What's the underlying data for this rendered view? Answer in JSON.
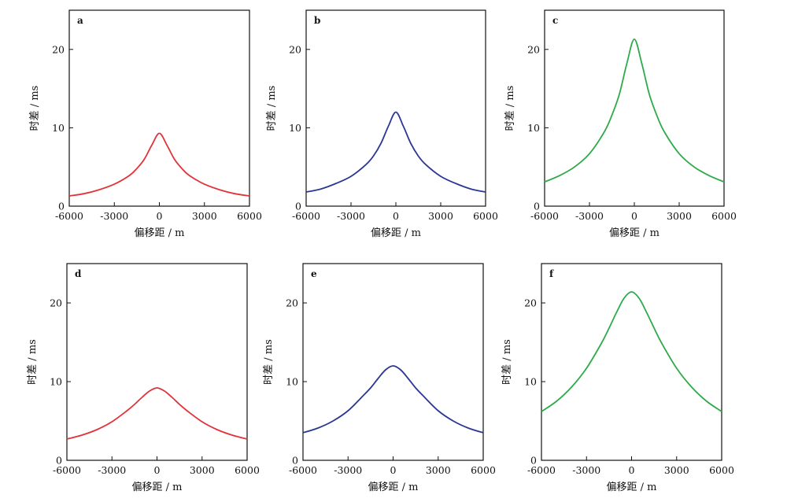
{
  "chart_data": [
    {
      "panel_label": "a",
      "type": "line",
      "color": "#e0333a",
      "xlabel": "偏移距 / m",
      "ylabel": "时差 / ms",
      "xlim": [
        -6000,
        6000
      ],
      "ylim": [
        0,
        25
      ],
      "xticks": [
        "-6000",
        "-3000",
        "0",
        "3000",
        "6000"
      ],
      "yticks": [
        "0",
        "10",
        "20"
      ],
      "series": [
        {
          "x": [
            -6000,
            -5000,
            -4000,
            -3000,
            -2000,
            -1500,
            -1000,
            -500,
            0,
            500,
            1000,
            1500,
            2000,
            3000,
            4000,
            5000,
            6000
          ],
          "y": [
            1.3,
            1.6,
            2.1,
            2.8,
            3.9,
            4.8,
            6.0,
            7.8,
            9.3,
            7.8,
            6.0,
            4.8,
            3.9,
            2.8,
            2.1,
            1.6,
            1.3
          ]
        }
      ]
    },
    {
      "panel_label": "b",
      "type": "line",
      "color": "#2b3794",
      "xlabel": "偏移距 / m",
      "ylabel": "时差 / ms",
      "xlim": [
        -6000,
        6000
      ],
      "ylim": [
        0,
        25
      ],
      "xticks": [
        "-6000",
        "-3000",
        "0",
        "3000",
        "6000"
      ],
      "yticks": [
        "0",
        "10",
        "20"
      ],
      "series": [
        {
          "x": [
            -6000,
            -5000,
            -4000,
            -3000,
            -2000,
            -1500,
            -1000,
            -500,
            0,
            500,
            1000,
            1500,
            2000,
            3000,
            4000,
            5000,
            6000
          ],
          "y": [
            1.8,
            2.2,
            2.9,
            3.8,
            5.3,
            6.4,
            8.0,
            10.2,
            12.0,
            10.2,
            8.0,
            6.4,
            5.3,
            3.8,
            2.9,
            2.2,
            1.8
          ]
        }
      ]
    },
    {
      "panel_label": "c",
      "type": "line",
      "color": "#2eaa4a",
      "xlabel": "偏移距 / m",
      "ylabel": "时差 / ms",
      "xlim": [
        -6000,
        6000
      ],
      "ylim": [
        0,
        25
      ],
      "xticks": [
        "-6000",
        "-3000",
        "0",
        "3000",
        "6000"
      ],
      "yticks": [
        "0",
        "10",
        "20"
      ],
      "series": [
        {
          "x": [
            -6000,
            -5000,
            -4000,
            -3000,
            -2000,
            -1500,
            -1000,
            -500,
            0,
            500,
            1000,
            1500,
            2000,
            3000,
            4000,
            5000,
            6000
          ],
          "y": [
            3.1,
            3.9,
            5.0,
            6.7,
            9.5,
            11.6,
            14.3,
            18.2,
            21.3,
            18.2,
            14.3,
            11.6,
            9.5,
            6.7,
            5.0,
            3.9,
            3.1
          ]
        }
      ]
    },
    {
      "panel_label": "d",
      "type": "line",
      "color": "#e0333a",
      "xlabel": "偏移距 / m",
      "ylabel": "时差 / ms",
      "xlim": [
        -6000,
        6000
      ],
      "ylim": [
        0,
        25
      ],
      "xticks": [
        "-6000",
        "-3000",
        "0",
        "3000",
        "6000"
      ],
      "yticks": [
        "0",
        "10",
        "20"
      ],
      "series": [
        {
          "x": [
            -6000,
            -5000,
            -4000,
            -3000,
            -2000,
            -1500,
            -1000,
            -500,
            0,
            500,
            1000,
            1500,
            2000,
            3000,
            4000,
            5000,
            6000
          ],
          "y": [
            2.7,
            3.2,
            3.9,
            4.9,
            6.3,
            7.1,
            8.0,
            8.8,
            9.2,
            8.8,
            8.0,
            7.1,
            6.3,
            4.9,
            3.9,
            3.2,
            2.7
          ]
        }
      ]
    },
    {
      "panel_label": "e",
      "type": "line",
      "color": "#2b3794",
      "xlabel": "偏移距 / m",
      "ylabel": "时差 / ms",
      "xlim": [
        -6000,
        6000
      ],
      "ylim": [
        0,
        25
      ],
      "xticks": [
        "-6000",
        "-3000",
        "0",
        "3000",
        "6000"
      ],
      "yticks": [
        "0",
        "10",
        "20"
      ],
      "series": [
        {
          "x": [
            -6000,
            -5000,
            -4000,
            -3000,
            -2000,
            -1500,
            -1000,
            -500,
            0,
            500,
            1000,
            1500,
            2000,
            3000,
            4000,
            5000,
            6000
          ],
          "y": [
            3.5,
            4.1,
            5.0,
            6.3,
            8.2,
            9.2,
            10.4,
            11.5,
            12.0,
            11.5,
            10.4,
            9.2,
            8.2,
            6.3,
            5.0,
            4.1,
            3.5
          ]
        }
      ]
    },
    {
      "panel_label": "f",
      "type": "line",
      "color": "#2eaa4a",
      "xlabel": "偏移距 / m",
      "ylabel": "时差 / ms",
      "xlim": [
        -6000,
        6000
      ],
      "ylim": [
        0,
        25
      ],
      "xticks": [
        "-6000",
        "-3000",
        "0",
        "3000",
        "6000"
      ],
      "yticks": [
        "0",
        "10",
        "20"
      ],
      "series": [
        {
          "x": [
            -6000,
            -5000,
            -4000,
            -3000,
            -2000,
            -1500,
            -1000,
            -500,
            0,
            500,
            1000,
            1500,
            2000,
            3000,
            4000,
            5000,
            6000
          ],
          "y": [
            6.2,
            7.5,
            9.3,
            11.7,
            14.9,
            16.8,
            18.8,
            20.6,
            21.4,
            20.6,
            18.8,
            16.8,
            14.9,
            11.7,
            9.3,
            7.5,
            6.2
          ]
        }
      ]
    }
  ]
}
